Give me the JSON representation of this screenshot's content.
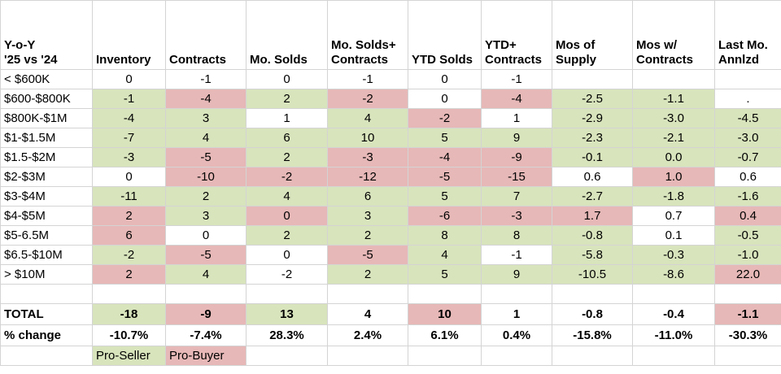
{
  "header": {
    "corner": "Y-o-Y\n'25 vs '24",
    "columns": [
      "Inventory",
      "Contracts",
      "Mo. Solds",
      "Mo. Solds+\nContracts",
      "YTD Solds",
      "YTD+\nContracts",
      "Mos of\nSupply",
      "Mos w/\nContracts",
      "Last Mo.\nAnnlzd"
    ]
  },
  "rows": [
    {
      "label": "< $600K",
      "values": [
        "0",
        "-1",
        "0",
        "-1",
        "0",
        "-1",
        "",
        "",
        ""
      ]
    },
    {
      "label": "$600-$800K",
      "values": [
        "-1",
        "-4",
        "2",
        "-2",
        "0",
        "-4",
        "-2.5",
        "-1.1",
        "."
      ]
    },
    {
      "label": "$800K-$1M",
      "values": [
        "-4",
        "3",
        "1",
        "4",
        "-2",
        "1",
        "-2.9",
        "-3.0",
        "-4.5"
      ]
    },
    {
      "label": "$1-$1.5M",
      "values": [
        "-7",
        "4",
        "6",
        "10",
        "5",
        "9",
        "-2.3",
        "-2.1",
        "-3.0"
      ]
    },
    {
      "label": "$1.5-$2M",
      "values": [
        "-3",
        "-5",
        "2",
        "-3",
        "-4",
        "-9",
        "-0.1",
        "0.0",
        "-0.7"
      ]
    },
    {
      "label": "$2-$3M",
      "values": [
        "0",
        "-10",
        "-2",
        "-12",
        "-5",
        "-15",
        "0.6",
        "1.0",
        "0.6"
      ]
    },
    {
      "label": "$3-$4M",
      "values": [
        "-11",
        "2",
        "4",
        "6",
        "5",
        "7",
        "-2.7",
        "-1.8",
        "-1.6"
      ]
    },
    {
      "label": "$4-$5M",
      "values": [
        "2",
        "3",
        "0",
        "3",
        "-6",
        "-3",
        "1.7",
        "0.7",
        "0.4"
      ]
    },
    {
      "label": "$5-6.5M",
      "values": [
        "6",
        "0",
        "2",
        "2",
        "8",
        "8",
        "-0.8",
        "0.1",
        "-0.5"
      ]
    },
    {
      "label": "$6.5-$10M",
      "values": [
        "-2",
        "-5",
        "0",
        "-5",
        "4",
        "-1",
        "-5.8",
        "-0.3",
        "-1.0"
      ]
    },
    {
      "label": "> $10M",
      "values": [
        "2",
        "4",
        "-2",
        "2",
        "5",
        "9",
        "-10.5",
        "-8.6",
        "22.0"
      ]
    }
  ],
  "total": {
    "label": "TOTAL",
    "values": [
      "-18",
      "-9",
      "13",
      "4",
      "10",
      "1",
      "-0.8",
      "-0.4",
      "-1.1"
    ]
  },
  "pct": {
    "label": "% change",
    "values": [
      "-10.7%",
      "-7.4%",
      "28.3%",
      "2.4%",
      "6.1%",
      "0.4%",
      "-15.8%",
      "-11.0%",
      "-30.3%"
    ]
  },
  "legend": {
    "pro_seller": "Pro-Seller",
    "pro_buyer": "Pro-Buyer"
  },
  "colors": {
    "pro_seller": "#d8e4bc",
    "pro_buyer": "#e6b8b7"
  },
  "shading": {
    "rows": [
      [
        "",
        "",
        "",
        "",
        "",
        "",
        "",
        "",
        ""
      ],
      [
        "g",
        "r",
        "g",
        "r",
        "",
        "r",
        "g",
        "g",
        ""
      ],
      [
        "g",
        "g",
        "",
        "g",
        "r",
        "",
        "g",
        "g",
        "g"
      ],
      [
        "g",
        "g",
        "g",
        "g",
        "g",
        "g",
        "g",
        "g",
        "g"
      ],
      [
        "g",
        "r",
        "g",
        "r",
        "r",
        "r",
        "g",
        "g",
        "g"
      ],
      [
        "",
        "r",
        "r",
        "r",
        "r",
        "r",
        "",
        "r",
        ""
      ],
      [
        "g",
        "g",
        "g",
        "g",
        "g",
        "g",
        "g",
        "g",
        "g"
      ],
      [
        "r",
        "g",
        "r",
        "g",
        "r",
        "r",
        "r",
        "",
        "r"
      ],
      [
        "r",
        "",
        "g",
        "g",
        "g",
        "g",
        "g",
        "",
        "g"
      ],
      [
        "g",
        "r",
        "",
        "r",
        "g",
        "",
        "g",
        "g",
        "g"
      ],
      [
        "r",
        "g",
        "",
        "g",
        "g",
        "g",
        "g",
        "g",
        "r"
      ]
    ],
    "total": [
      "g",
      "r",
      "g",
      "",
      "r",
      "",
      "",
      "",
      "r"
    ]
  }
}
